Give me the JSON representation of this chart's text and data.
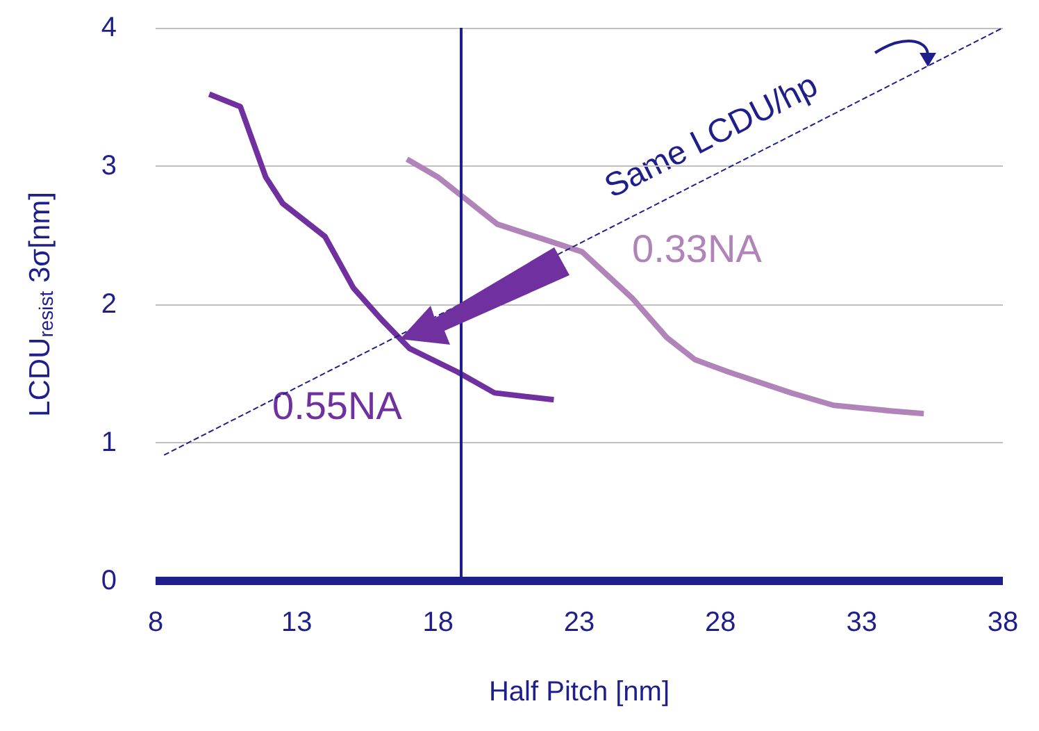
{
  "chart_data": {
    "type": "line",
    "xlabel": "Half Pitch [nm]",
    "ylabel": "LCDU$_{resist}$ 3σ[nm]",
    "xlim": [
      8,
      38
    ],
    "xticks": [
      8,
      13,
      18,
      23,
      28,
      33,
      38
    ],
    "ylim": [
      0,
      4
    ],
    "yticks": [
      0,
      1,
      2,
      3,
      4
    ],
    "grid": "y",
    "legend": false,
    "marker": "none",
    "series": [
      {
        "name": "0.55NA",
        "color": "#7030a0",
        "x": [
          9.9,
          11.0,
          11.9,
          12.5,
          14.0,
          15.0,
          16.0,
          17.0,
          18.7,
          20.0,
          22.1
        ],
        "values": [
          3.52,
          3.43,
          2.92,
          2.73,
          2.49,
          2.12,
          1.89,
          1.68,
          1.51,
          1.36,
          1.31
        ]
      },
      {
        "name": "0.33NA",
        "color": "#b084b8",
        "x": [
          16.9,
          18.0,
          20.1,
          23.1,
          24.9,
          26.1,
          27.1,
          28.3,
          30.5,
          32.0,
          34.0,
          35.2
        ],
        "values": [
          3.05,
          2.92,
          2.58,
          2.38,
          2.04,
          1.76,
          1.6,
          1.51,
          1.36,
          1.27,
          1.23,
          1.21
        ]
      },
      {
        "name": "Same LCDU/hp",
        "color": "#1f1f8c",
        "line_style": "dashed",
        "x": [
          8.3,
          38
        ],
        "values": [
          0.91,
          4.0
        ]
      }
    ],
    "ref_lines": [
      {
        "axis": "x",
        "value": 18.8,
        "color": "#1f1f8c"
      }
    ]
  }
}
